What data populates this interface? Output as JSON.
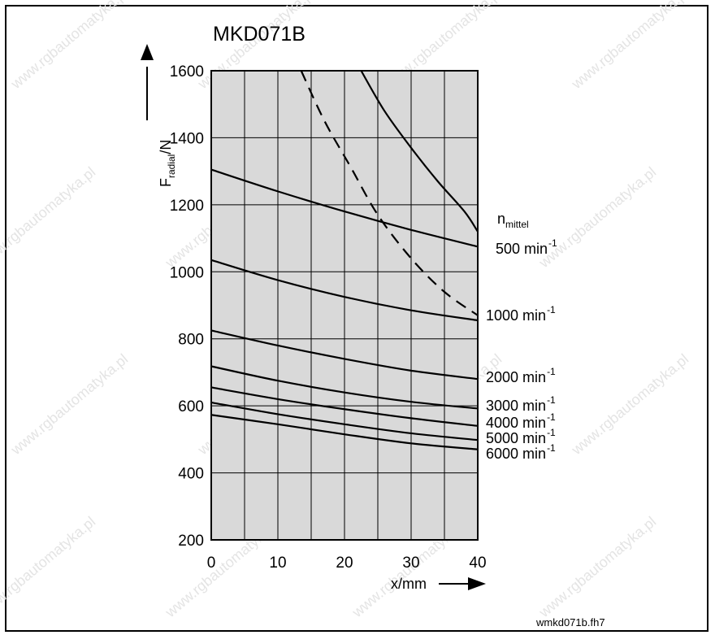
{
  "chart_data": {
    "type": "line",
    "title": "MKD071B",
    "ylabel": {
      "main": "F",
      "sub": "radial",
      "unit": "/N"
    },
    "xlabel": "x/mm",
    "xlim": [
      0,
      40
    ],
    "ylim": [
      200,
      1600
    ],
    "x_ticks": [
      0,
      10,
      20,
      30,
      40
    ],
    "y_ticks": [
      200,
      400,
      600,
      800,
      1000,
      1200,
      1400,
      1600
    ],
    "x_gridlines": [
      0,
      5,
      10,
      15,
      20,
      25,
      30,
      35,
      40
    ],
    "y_gridlines": [
      200,
      400,
      600,
      800,
      1000,
      1200,
      1400,
      1600
    ],
    "grid": true,
    "legend_header": {
      "main": "n",
      "sub": "mittel"
    },
    "series": [
      {
        "name": "500 min",
        "exp": "-1",
        "style": "solid",
        "x": [
          0,
          10,
          20,
          30,
          40
        ],
        "y": [
          1305,
          1240,
          1180,
          1125,
          1075
        ]
      },
      {
        "name": "1000 min",
        "exp": "-1",
        "style": "solid",
        "x": [
          0,
          10,
          20,
          30,
          40
        ],
        "y": [
          1035,
          975,
          925,
          885,
          855
        ]
      },
      {
        "name": "2000 min",
        "exp": "-1",
        "style": "solid",
        "x": [
          0,
          10,
          20,
          30,
          40
        ],
        "y": [
          825,
          780,
          740,
          705,
          680
        ]
      },
      {
        "name": "3000 min",
        "exp": "-1",
        "style": "solid",
        "x": [
          0,
          10,
          20,
          30,
          40
        ],
        "y": [
          718,
          675,
          640,
          612,
          592
        ]
      },
      {
        "name": "4000 min",
        "exp": "-1",
        "style": "solid",
        "x": [
          0,
          10,
          20,
          30,
          40
        ],
        "y": [
          655,
          620,
          590,
          563,
          540
        ]
      },
      {
        "name": "5000 min",
        "exp": "-1",
        "style": "solid",
        "x": [
          0,
          10,
          20,
          30,
          40
        ],
        "y": [
          610,
          575,
          545,
          518,
          498
        ]
      },
      {
        "name": "6000 min",
        "exp": "-1",
        "style": "solid",
        "x": [
          0,
          10,
          20,
          30,
          40
        ],
        "y": [
          573,
          545,
          515,
          488,
          470
        ]
      },
      {
        "style": "dashed",
        "x": [
          13.5,
          17,
          21,
          25,
          30,
          35,
          40
        ],
        "y": [
          1600,
          1450,
          1310,
          1170,
          1040,
          940,
          870
        ]
      },
      {
        "style": "solid",
        "x": [
          22.5,
          26,
          30,
          34,
          38,
          40
        ],
        "y": [
          1600,
          1480,
          1370,
          1270,
          1180,
          1120
        ]
      }
    ]
  },
  "footer": {
    "filename": "wmkd071b.fh7"
  },
  "colors": {
    "plot_bg": "#d9d9d9",
    "line": "#000000",
    "watermark": "#e4e4e4"
  },
  "watermark": "www.rgbautomatyka.pl"
}
